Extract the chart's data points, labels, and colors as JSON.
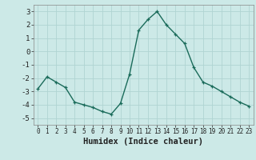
{
  "x": [
    0,
    1,
    2,
    3,
    4,
    5,
    6,
    7,
    8,
    9,
    10,
    11,
    12,
    13,
    14,
    15,
    16,
    17,
    18,
    19,
    20,
    21,
    22,
    23
  ],
  "y": [
    -2.8,
    -1.9,
    -2.3,
    -2.7,
    -3.8,
    -4.0,
    -4.2,
    -4.5,
    -4.7,
    -3.9,
    -1.7,
    1.6,
    2.4,
    3.0,
    2.0,
    1.3,
    0.6,
    -1.2,
    -2.3,
    -2.6,
    -3.0,
    -3.4,
    -3.8,
    -4.1
  ],
  "line_color": "#1a6b5a",
  "marker": "+",
  "markersize": 3.5,
  "linewidth": 1.0,
  "xlabel": "Humidex (Indice chaleur)",
  "xlabel_fontsize": 7.5,
  "xlabel_fontweight": "bold",
  "bg_color": "#cce9e7",
  "grid_color": "#b0d4d2",
  "tick_color": "#222222",
  "xlim": [
    -0.5,
    23.5
  ],
  "ylim": [
    -5.5,
    3.5
  ],
  "yticks": [
    -5,
    -4,
    -3,
    -2,
    -1,
    0,
    1,
    2,
    3
  ],
  "xticks": [
    0,
    1,
    2,
    3,
    4,
    5,
    6,
    7,
    8,
    9,
    10,
    11,
    12,
    13,
    14,
    15,
    16,
    17,
    18,
    19,
    20,
    21,
    22,
    23
  ],
  "tick_fontsize": 5.5,
  "ytick_fontsize": 6.5
}
